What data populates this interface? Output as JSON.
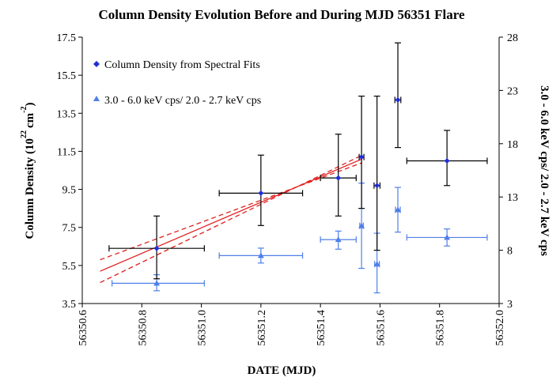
{
  "chart_data": {
    "type": "scatter",
    "title": "Column Density Evolution Before and During MJD 56351 Flare",
    "xlabel": "DATE (MJD)",
    "ylabel": {
      "main": "Column Density (10",
      "exponent": "22",
      "unit": "cm",
      "unit_exponent": "-2",
      "close": ")"
    },
    "y2label": "3.0 - 6.0 keV cps/ 2.0 - 2.7 keV cps",
    "xlim": [
      56350.6,
      56352.0
    ],
    "ylim": [
      3.5,
      17.5
    ],
    "y2lim": [
      3,
      28
    ],
    "xticks": [
      "56350.6",
      "56350.8",
      "56351.0",
      "56351.2",
      "56351.4",
      "56351.6",
      "56351.8",
      "56352.0"
    ],
    "yticks": [
      "3.5",
      "5.5",
      "7.5",
      "9.5",
      "11.5",
      "13.5",
      "15.5",
      "17.5"
    ],
    "y2ticks": [
      "3",
      "8",
      "13",
      "18",
      "23",
      "28"
    ],
    "legend_position": "top-left",
    "grid": false,
    "colors": {
      "column_density": "#1f2fd6",
      "hardness_ratio": "#4f7fe8",
      "fit_line": "#e02020",
      "error_bar_black": "#000000"
    },
    "series": [
      {
        "name": "Column Density from Spectral Fits",
        "marker": "diamond",
        "axis": "left",
        "points": [
          {
            "x": 56350.85,
            "y": 6.4,
            "xerr_lo": 56350.69,
            "xerr_hi": 56351.01,
            "yerr_lo": 4.8,
            "yerr_hi": 8.1
          },
          {
            "x": 56351.2,
            "y": 9.3,
            "xerr_lo": 56351.06,
            "xerr_hi": 56351.34,
            "yerr_lo": 7.6,
            "yerr_hi": 11.3
          },
          {
            "x": 56351.46,
            "y": 10.1,
            "xerr_lo": 56351.4,
            "xerr_hi": 56351.52,
            "yerr_lo": 8.1,
            "yerr_hi": 12.4
          },
          {
            "x": 56351.538,
            "y": 11.2,
            "xerr_lo": 56351.53,
            "xerr_hi": 56351.546,
            "yerr_lo": 8.5,
            "yerr_hi": 14.4
          },
          {
            "x": 56351.59,
            "y": 9.7,
            "xerr_lo": 56351.58,
            "xerr_hi": 56351.6,
            "yerr_lo": 6.3,
            "yerr_hi": 14.4
          },
          {
            "x": 56351.66,
            "y": 14.2,
            "xerr_lo": 56351.65,
            "xerr_hi": 56351.67,
            "yerr_lo": 11.7,
            "yerr_hi": 17.2
          },
          {
            "x": 56351.825,
            "y": 11.0,
            "xerr_lo": 56351.69,
            "xerr_hi": 56351.96,
            "yerr_lo": 9.7,
            "yerr_hi": 12.6
          }
        ]
      },
      {
        "name": "3.0 - 6.0 keV cps/ 2.0 - 2.7 keV cps",
        "marker": "triangle",
        "axis": "right",
        "points": [
          {
            "x": 56350.85,
            "y": 4.9,
            "xerr_lo": 56350.7,
            "xerr_hi": 56351.01,
            "yerr_lo": 4.2,
            "yerr_hi": 5.7
          },
          {
            "x": 56351.2,
            "y": 7.5,
            "xerr_lo": 56351.06,
            "xerr_hi": 56351.34,
            "yerr_lo": 6.8,
            "yerr_hi": 8.2
          },
          {
            "x": 56351.46,
            "y": 9.0,
            "xerr_lo": 56351.4,
            "xerr_hi": 56351.52,
            "yerr_lo": 8.1,
            "yerr_hi": 9.8
          },
          {
            "x": 56351.538,
            "y": 10.3,
            "xerr_lo": 56351.532,
            "xerr_hi": 56351.544,
            "yerr_lo": 6.3,
            "yerr_hi": 14.3
          },
          {
            "x": 56351.59,
            "y": 6.7,
            "xerr_lo": 56351.582,
            "xerr_hi": 56351.598,
            "yerr_lo": 4.0,
            "yerr_hi": 9.6
          },
          {
            "x": 56351.66,
            "y": 11.8,
            "xerr_lo": 56351.652,
            "xerr_hi": 56351.668,
            "yerr_lo": 9.7,
            "yerr_hi": 13.9
          },
          {
            "x": 56351.825,
            "y": 9.2,
            "xerr_lo": 56351.69,
            "xerr_hi": 56351.96,
            "yerr_lo": 8.4,
            "yerr_hi": 10.0
          }
        ]
      }
    ],
    "fit_lines": [
      {
        "style": "solid",
        "x": [
          56350.66,
          56351.54
        ],
        "y": [
          5.2,
          11.1
        ]
      },
      {
        "style": "dashed",
        "x": [
          56350.66,
          56351.54
        ],
        "y": [
          5.8,
          10.9
        ]
      },
      {
        "style": "dashed",
        "x": [
          56350.66,
          56351.54
        ],
        "y": [
          4.6,
          11.3
        ]
      }
    ]
  }
}
